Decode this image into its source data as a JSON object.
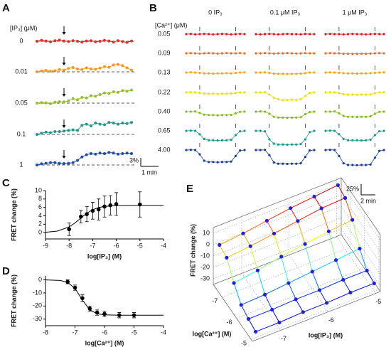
{
  "chart_data": [
    {
      "type": "trace",
      "panel": "A",
      "label": "[IP₃] (μM)",
      "rows": [
        {
          "name": "0",
          "color": "#e0302a",
          "values": [
            0,
            0.3,
            0.1,
            -0.2,
            0.2,
            0.4,
            0.1,
            -0.1,
            0.2,
            0,
            -0.3,
            0.1,
            0.2,
            -0.2,
            0,
            0.3,
            0.1,
            -0.3,
            0.2,
            -0.1,
            -0.4,
            0.1
          ]
        },
        {
          "name": "0.01",
          "color": "#f39a1e",
          "values": [
            0,
            0.3,
            0.5,
            0.2,
            0.4,
            0.8,
            0.6,
            1.2,
            1.5,
            1.0,
            0.8,
            1.4,
            1.0,
            0.9,
            1.3,
            1.8,
            1.6,
            2.4,
            2.6,
            2.2,
            1.4,
            0.6
          ]
        },
        {
          "name": "0.05",
          "color": "#93c02a",
          "values": [
            0,
            0.2,
            0.1,
            -0.2,
            0.3,
            0.5,
            0.4,
            0.8,
            1.6,
            1.2,
            2.0,
            1.8,
            2.6,
            2.4,
            3.0,
            3.6,
            3.4,
            4.0,
            3.8,
            4.4,
            4.2,
            4.6
          ]
        },
        {
          "name": "0.1",
          "color": "#23998c",
          "values": [
            0,
            0.4,
            0.8,
            0.6,
            1.0,
            1.0,
            1.2,
            1.4,
            1.6,
            1.4,
            3.2,
            3.6,
            3.0,
            4.0,
            3.6,
            3.4,
            4.2,
            4.0,
            3.6,
            4.0,
            3.8,
            4.2
          ]
        },
        {
          "name": "1",
          "color": "#1e4ea6",
          "values": [
            0,
            0.4,
            0.6,
            0.8,
            0.8,
            0.6,
            0.5,
            0.6,
            0.8,
            1.6,
            2.8,
            3.6,
            4.0,
            3.8,
            4.2,
            4.0,
            4.4,
            4.2,
            3.8,
            4.0,
            4.2,
            4.0
          ]
        }
      ],
      "scale_y": {
        "value": 3,
        "label": "3%"
      },
      "scale_x": {
        "value": 1,
        "label": "1 min"
      }
    },
    {
      "type": "trace-grid",
      "panel": "B",
      "label": "[Ca²⁺] (μM)",
      "columns": [
        "0 IP₃",
        "0.1 μM IP₃",
        "1 μM IP₃"
      ],
      "rows": [
        {
          "name": "0.05",
          "color": "#d7191c",
          "values": [
            [
              0,
              0.5,
              -0.5,
              0,
              0.5,
              0,
              -0.5,
              0,
              0.5,
              0,
              -0.5,
              0,
              0.5,
              0
            ],
            [
              0,
              -0.5,
              0,
              0.5,
              0,
              -0.5,
              0,
              0.5,
              0,
              0,
              -0.5,
              0.5,
              0,
              0
            ],
            [
              0,
              0.5,
              0,
              0,
              -0.5,
              0,
              0.5,
              0,
              0,
              -0.5,
              0,
              0.5,
              0,
              0
            ]
          ]
        },
        {
          "name": "0.09",
          "color": "#ef6c1a",
          "values": [
            [
              0,
              0.5,
              0,
              -0.5,
              0,
              0.5,
              0,
              -0.5,
              0,
              0.5,
              0,
              0,
              0.5,
              0
            ],
            [
              0,
              0,
              0.5,
              0,
              -0.5,
              0,
              0,
              0.5,
              0,
              -0.5,
              0,
              0.5,
              0,
              0
            ],
            [
              0,
              0.5,
              0,
              0,
              -1,
              -1,
              -1.5,
              -1,
              -1,
              -1,
              -0.5,
              0,
              0.5,
              0
            ]
          ]
        },
        {
          "name": "0.13",
          "color": "#f5a320",
          "values": [
            [
              0,
              0.5,
              0,
              -1,
              -2,
              -2,
              -2.5,
              -2,
              -2,
              -1.5,
              -2,
              -1,
              0,
              0.5
            ],
            [
              0,
              0,
              0.5,
              -1,
              -2.5,
              -3,
              -3,
              -3.5,
              -3,
              -3,
              -2.5,
              -1.5,
              0,
              0
            ],
            [
              0,
              0.5,
              0,
              -0.5,
              -1.5,
              -2,
              -2,
              -2.5,
              -2,
              -2,
              -1.5,
              -1,
              0,
              0.5
            ]
          ]
        },
        {
          "name": "0.22",
          "color": "#ece000",
          "values": [
            [
              0,
              0.5,
              0,
              -1,
              -2.5,
              -3,
              -3,
              -3.5,
              -3,
              -3,
              -2.5,
              -1.5,
              0,
              0
            ],
            [
              0,
              0,
              0.5,
              -5,
              -12,
              -16,
              -18,
              -18,
              -17,
              -18,
              -16,
              -8,
              -1,
              0
            ],
            [
              0,
              0.5,
              0,
              -1.5,
              -4,
              -5,
              -5,
              -5.5,
              -5,
              -5,
              -4.5,
              -2,
              0,
              0.5
            ]
          ]
        },
        {
          "name": "0.40",
          "color": "#86bd1c",
          "values": [
            [
              0,
              0,
              0.5,
              -3,
              -7,
              -8,
              -8,
              -8.5,
              -8,
              -8,
              -7.5,
              -4,
              -0.5,
              0
            ],
            [
              0,
              0.5,
              0,
              -5,
              -12,
              -14,
              -14,
              -14.5,
              -14,
              -14,
              -13,
              -6,
              -1,
              0
            ],
            [
              0,
              0,
              0.5,
              -4,
              -10,
              -12,
              -12,
              -12.5,
              -12,
              -12,
              -11,
              -5,
              -0.5,
              0
            ]
          ]
        },
        {
          "name": "0.65",
          "color": "#17998c",
          "values": [
            [
              0,
              0.5,
              0,
              -8,
              -19,
              -22,
              -22,
              -22.5,
              -22,
              -22,
              -21,
              -10,
              -1,
              0
            ],
            [
              0,
              0,
              -1,
              -20,
              -30,
              -32,
              -32,
              -32.5,
              -32,
              -32,
              -31,
              -20,
              -3,
              0
            ],
            [
              0,
              0.5,
              0,
              -8,
              -19,
              -22,
              -22,
              -22,
              -22.5,
              -22,
              -21,
              -10,
              -1,
              0
            ]
          ]
        },
        {
          "name": "4.00",
          "color": "#1c3c9c",
          "values": [
            [
              0,
              0.5,
              0,
              -10,
              -25,
              -28,
              -28,
              -28.5,
              -28,
              -28,
              -27,
              -14,
              -1,
              0
            ],
            [
              0,
              0,
              0.5,
              -12,
              -29,
              -32,
              -32,
              -32.5,
              -32,
              -32,
              -31,
              -16,
              -1,
              0
            ],
            [
              0,
              0.5,
              0,
              -14,
              -31,
              -35,
              -35,
              -35.5,
              -35,
              -35,
              -34,
              -18,
              -2,
              0
            ]
          ]
        }
      ],
      "scale_y": {
        "value": 25,
        "label": "25%"
      },
      "scale_x": {
        "value": 2,
        "label": "2 min"
      }
    },
    {
      "type": "scatter",
      "panel": "C",
      "xlabel": "log[IP₃] (M)",
      "ylabel": "FRET change (%)",
      "color": "#000000",
      "points": {
        "x": [
          -8,
          -7.5,
          -7.25,
          -7,
          -6.75,
          -6.5,
          -6.25,
          -6,
          -5
        ],
        "values": [
          0.8,
          3.8,
          4.4,
          5.2,
          5.5,
          6.2,
          6.5,
          6.8,
          6.7
        ],
        "errors": [
          1.5,
          1.5,
          1.8,
          2,
          2.5,
          2.5,
          2.3,
          2.7,
          3
        ]
      },
      "fit": {
        "x": [
          -9,
          -8.5,
          -8,
          -7.75,
          -7.5,
          -7.25,
          -7,
          -6.75,
          -6.5,
          -6,
          -5.5,
          -5,
          -4.5,
          -4
        ],
        "values": [
          0.08,
          0.36,
          1.34,
          2.3,
          3.49,
          4.61,
          5.45,
          5.96,
          6.23,
          6.43,
          6.48,
          6.5,
          6.5,
          6.5
        ]
      },
      "xlim": [
        -9,
        -4
      ],
      "xticks": [
        -9,
        -8,
        -7,
        -6,
        -5,
        -4
      ],
      "ylim": [
        -1.5,
        10
      ],
      "yticks": [
        0,
        2,
        4,
        6,
        8,
        10
      ]
    },
    {
      "type": "scatter",
      "panel": "D",
      "xlabel": "log[Ca²⁺] (M)",
      "ylabel": "FRET change (%)",
      "color": "#000000",
      "points": {
        "x": [
          -7.25,
          -7,
          -6.75,
          -6.5,
          -6.25,
          -6,
          -5.5,
          -5
        ],
        "values": [
          -1.5,
          -6,
          -14,
          -22,
          -25,
          -26,
          -27,
          -27
        ],
        "errors": [
          1.5,
          2,
          2.5,
          2,
          2,
          2,
          2,
          2
        ]
      },
      "fit": {
        "x": [
          -8,
          -7.5,
          -7.25,
          -7,
          -6.75,
          -6.5,
          -6.25,
          -6,
          -5.5,
          -5,
          -4.5,
          -4
        ],
        "values": [
          -0.03,
          -0.47,
          -1.9,
          -6.5,
          -15.4,
          -22.9,
          -25.9,
          -26.7,
          -27,
          -27,
          -27,
          -27
        ]
      },
      "xlim": [
        -8,
        -4
      ],
      "xticks": [
        -8,
        -7,
        -6,
        -5,
        -4
      ],
      "ylim": [
        -35,
        3
      ],
      "yticks": [
        0,
        -10,
        -20,
        -30
      ]
    },
    {
      "type": "surface",
      "panel": "E",
      "zlabel": "FRET change (%)",
      "xlabel": "log[Ca²⁺] (M)",
      "ylabel": "log[IP₃] (M)",
      "x": [
        -7.5,
        -7,
        -6.5,
        -6,
        -5.5,
        -5
      ],
      "y": [
        -7.5,
        -7,
        -6.5,
        -6,
        -5.5,
        -5
      ],
      "z": [
        [
          0,
          2,
          5,
          8,
          10,
          12
        ],
        [
          -2,
          0,
          3,
          6,
          9,
          10
        ],
        [
          -15,
          -12,
          -8,
          -5,
          -2,
          0
        ],
        [
          -25,
          -24,
          -22,
          -20,
          -18,
          -16
        ],
        [
          -28,
          -28,
          -27,
          -27,
          -26,
          -26
        ],
        [
          -30,
          -30,
          -29,
          -29,
          -28,
          -28
        ]
      ],
      "xlim": [
        -7.6,
        -4.9
      ],
      "xticks": [
        -7,
        -6,
        -5
      ],
      "ylim": [
        -7.6,
        -4.9
      ],
      "yticks": [
        -7,
        -6,
        -5
      ],
      "zlim": [
        -35,
        15
      ],
      "zticks": [
        -30,
        -20,
        -10,
        0,
        10
      ],
      "point_color": "#1f1fe0"
    }
  ]
}
